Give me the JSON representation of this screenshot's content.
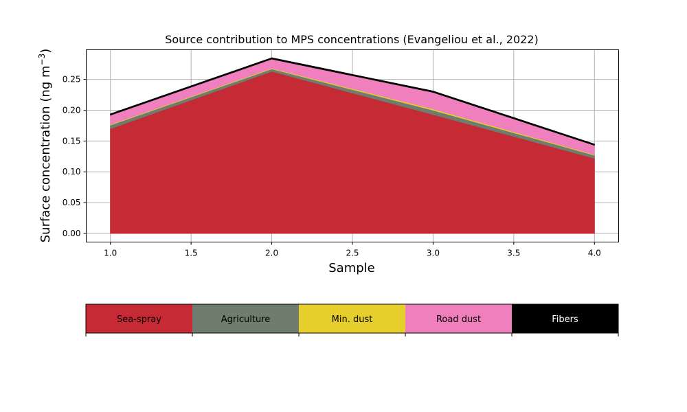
{
  "chart_data": {
    "type": "area",
    "stacked": true,
    "title": "Source contribution to MPS concentrations (Evangeliou et al., 2022)",
    "xlabel": "Sample",
    "ylabel": "Surface concentration (ng m",
    "ylabel_unit_exponent": "−3",
    "ylabel_close": ")",
    "x": [
      1.0,
      2.0,
      3.0,
      4.0
    ],
    "xlim": [
      0.85,
      4.15
    ],
    "ylim": [
      -0.014,
      0.298
    ],
    "x_ticks": [
      1.0,
      1.5,
      2.0,
      2.5,
      3.0,
      3.5,
      4.0
    ],
    "x_tick_labels": [
      "1.0",
      "1.5",
      "2.0",
      "2.5",
      "3.0",
      "3.5",
      "4.0"
    ],
    "y_ticks": [
      0.0,
      0.05,
      0.1,
      0.15,
      0.2,
      0.25
    ],
    "y_tick_labels": [
      "0.00",
      "0.05",
      "0.10",
      "0.15",
      "0.20",
      "0.25"
    ],
    "grid": true,
    "series": [
      {
        "name": "Sea-spray",
        "color": "#c52a35",
        "values": [
          0.17,
          0.263,
          0.193,
          0.122
        ]
      },
      {
        "name": "Agriculture",
        "color": "#6e7d6e",
        "values": [
          0.006,
          0.004,
          0.007,
          0.005
        ]
      },
      {
        "name": "Min. dust",
        "color": "#e6cf2c",
        "values": [
          0.001,
          0.001,
          0.002,
          0.001
        ]
      },
      {
        "name": "Road dust",
        "color": "#f07fbd",
        "values": [
          0.015,
          0.015,
          0.027,
          0.015
        ]
      },
      {
        "name": "Fibers",
        "color": "#000000",
        "values": [
          0.002,
          0.002,
          0.002,
          0.002
        ]
      }
    ]
  },
  "legend": {
    "placement": "bottom",
    "label_colors": [
      "#000000",
      "#000000",
      "#000000",
      "#000000",
      "#ffffff"
    ]
  }
}
